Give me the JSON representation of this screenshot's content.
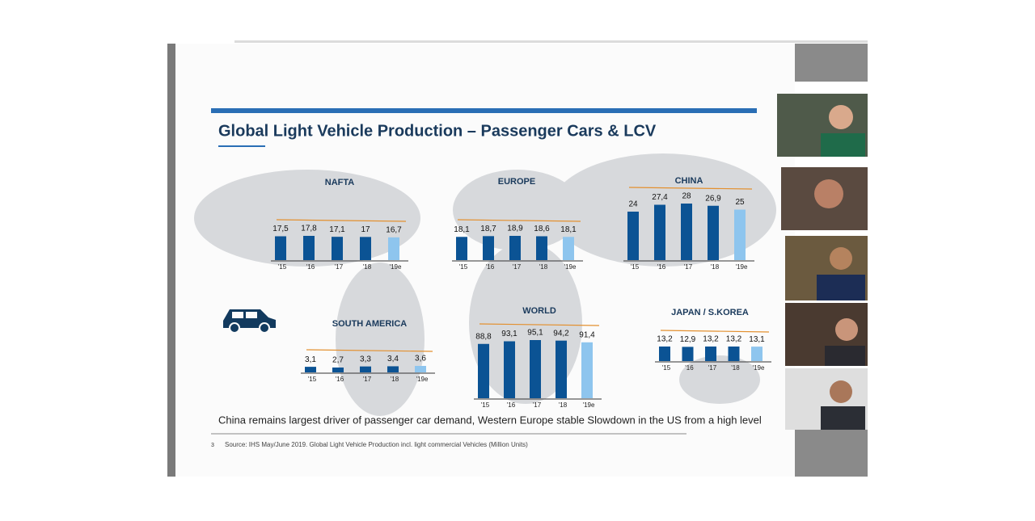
{
  "slide": {
    "title": "Global Light Vehicle Production – Passenger Cars & LCV",
    "caption": "China remains largest driver of passenger car demand, Western Europe stable Slowdown in the US from a high level",
    "page_number": "3",
    "source": "Source: IHS May/June 2019. Global Light Vehicle Production incl. light commercial Vehicles (Million Units)"
  },
  "chart_data": [
    {
      "type": "bar",
      "title": "NAFTA",
      "categories": [
        "'15",
        "'16",
        "'17",
        "'18",
        "'19e"
      ],
      "values": [
        17.5,
        17.8,
        17.1,
        17,
        16.7
      ],
      "value_labels": [
        "17,5",
        "17,8",
        "17,1",
        "17",
        "16,7"
      ],
      "color": "#0b5394",
      "estimate_color": "#8ec5ee"
    },
    {
      "type": "bar",
      "title": "EUROPE",
      "categories": [
        "'15",
        "'16",
        "'17",
        "'18",
        "'19e"
      ],
      "values": [
        18.1,
        18.7,
        18.9,
        18.6,
        18.1
      ],
      "value_labels": [
        "18,1",
        "18,7",
        "18,9",
        "18,6",
        "18,1"
      ],
      "color": "#0b5394",
      "estimate_color": "#8ec5ee"
    },
    {
      "type": "bar",
      "title": "CHINA",
      "categories": [
        "'15",
        "'16",
        "'17",
        "'18",
        "'19e"
      ],
      "values": [
        24,
        27.4,
        28,
        26.9,
        25
      ],
      "value_labels": [
        "24",
        "27,4",
        "28",
        "26,9",
        "25"
      ],
      "color": "#0b5394",
      "estimate_color": "#8ec5ee"
    },
    {
      "type": "bar",
      "title": "SOUTH AMERICA",
      "categories": [
        "'15",
        "'16",
        "'17",
        "'18",
        "'19e"
      ],
      "values": [
        3.1,
        2.7,
        3.3,
        3.4,
        3.6
      ],
      "value_labels": [
        "3,1",
        "2,7",
        "3,3",
        "3,4",
        "3,6"
      ],
      "color": "#0b5394",
      "estimate_color": "#8ec5ee"
    },
    {
      "type": "bar",
      "title": "WORLD",
      "categories": [
        "'15",
        "'16",
        "'17",
        "'18",
        "'19e"
      ],
      "values": [
        88.8,
        93.1,
        95.1,
        94.2,
        91.4
      ],
      "value_labels": [
        "88,8",
        "93,1",
        "95,1",
        "94,2",
        "91,4"
      ],
      "color": "#0b5394",
      "estimate_color": "#8ec5ee"
    },
    {
      "type": "bar",
      "title": "JAPAN / S.KOREA",
      "categories": [
        "'15",
        "'16",
        "'17",
        "'18",
        "'19e"
      ],
      "values": [
        13.2,
        12.9,
        13.2,
        13.2,
        13.1
      ],
      "value_labels": [
        "13,2",
        "12,9",
        "13,2",
        "13,2",
        "13,1"
      ],
      "color": "#0b5394",
      "estimate_color": "#8ec5ee"
    }
  ]
}
